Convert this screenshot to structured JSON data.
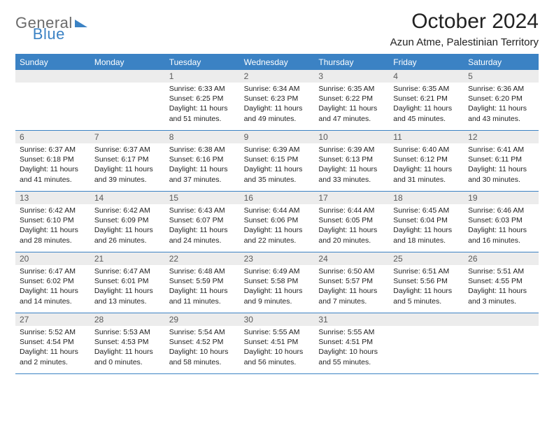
{
  "logo": {
    "part1": "General",
    "part2": "Blue"
  },
  "title": "October 2024",
  "subtitle": "Azun Atme, Palestinian Territory",
  "colors": {
    "brand": "#3b82c4",
    "grey_text": "#6b6b6b",
    "daynum_bg": "#ececec",
    "text": "#222222"
  },
  "day_names": [
    "Sunday",
    "Monday",
    "Tuesday",
    "Wednesday",
    "Thursday",
    "Friday",
    "Saturday"
  ],
  "weeks": [
    [
      null,
      null,
      {
        "n": "1",
        "sr": "6:33 AM",
        "ss": "6:25 PM",
        "dl": "11 hours and 51 minutes."
      },
      {
        "n": "2",
        "sr": "6:34 AM",
        "ss": "6:23 PM",
        "dl": "11 hours and 49 minutes."
      },
      {
        "n": "3",
        "sr": "6:35 AM",
        "ss": "6:22 PM",
        "dl": "11 hours and 47 minutes."
      },
      {
        "n": "4",
        "sr": "6:35 AM",
        "ss": "6:21 PM",
        "dl": "11 hours and 45 minutes."
      },
      {
        "n": "5",
        "sr": "6:36 AM",
        "ss": "6:20 PM",
        "dl": "11 hours and 43 minutes."
      }
    ],
    [
      {
        "n": "6",
        "sr": "6:37 AM",
        "ss": "6:18 PM",
        "dl": "11 hours and 41 minutes."
      },
      {
        "n": "7",
        "sr": "6:37 AM",
        "ss": "6:17 PM",
        "dl": "11 hours and 39 minutes."
      },
      {
        "n": "8",
        "sr": "6:38 AM",
        "ss": "6:16 PM",
        "dl": "11 hours and 37 minutes."
      },
      {
        "n": "9",
        "sr": "6:39 AM",
        "ss": "6:15 PM",
        "dl": "11 hours and 35 minutes."
      },
      {
        "n": "10",
        "sr": "6:39 AM",
        "ss": "6:13 PM",
        "dl": "11 hours and 33 minutes."
      },
      {
        "n": "11",
        "sr": "6:40 AM",
        "ss": "6:12 PM",
        "dl": "11 hours and 31 minutes."
      },
      {
        "n": "12",
        "sr": "6:41 AM",
        "ss": "6:11 PM",
        "dl": "11 hours and 30 minutes."
      }
    ],
    [
      {
        "n": "13",
        "sr": "6:42 AM",
        "ss": "6:10 PM",
        "dl": "11 hours and 28 minutes."
      },
      {
        "n": "14",
        "sr": "6:42 AM",
        "ss": "6:09 PM",
        "dl": "11 hours and 26 minutes."
      },
      {
        "n": "15",
        "sr": "6:43 AM",
        "ss": "6:07 PM",
        "dl": "11 hours and 24 minutes."
      },
      {
        "n": "16",
        "sr": "6:44 AM",
        "ss": "6:06 PM",
        "dl": "11 hours and 22 minutes."
      },
      {
        "n": "17",
        "sr": "6:44 AM",
        "ss": "6:05 PM",
        "dl": "11 hours and 20 minutes."
      },
      {
        "n": "18",
        "sr": "6:45 AM",
        "ss": "6:04 PM",
        "dl": "11 hours and 18 minutes."
      },
      {
        "n": "19",
        "sr": "6:46 AM",
        "ss": "6:03 PM",
        "dl": "11 hours and 16 minutes."
      }
    ],
    [
      {
        "n": "20",
        "sr": "6:47 AM",
        "ss": "6:02 PM",
        "dl": "11 hours and 14 minutes."
      },
      {
        "n": "21",
        "sr": "6:47 AM",
        "ss": "6:01 PM",
        "dl": "11 hours and 13 minutes."
      },
      {
        "n": "22",
        "sr": "6:48 AM",
        "ss": "5:59 PM",
        "dl": "11 hours and 11 minutes."
      },
      {
        "n": "23",
        "sr": "6:49 AM",
        "ss": "5:58 PM",
        "dl": "11 hours and 9 minutes."
      },
      {
        "n": "24",
        "sr": "6:50 AM",
        "ss": "5:57 PM",
        "dl": "11 hours and 7 minutes."
      },
      {
        "n": "25",
        "sr": "6:51 AM",
        "ss": "5:56 PM",
        "dl": "11 hours and 5 minutes."
      },
      {
        "n": "26",
        "sr": "5:51 AM",
        "ss": "4:55 PM",
        "dl": "11 hours and 3 minutes."
      }
    ],
    [
      {
        "n": "27",
        "sr": "5:52 AM",
        "ss": "4:54 PM",
        "dl": "11 hours and 2 minutes."
      },
      {
        "n": "28",
        "sr": "5:53 AM",
        "ss": "4:53 PM",
        "dl": "11 hours and 0 minutes."
      },
      {
        "n": "29",
        "sr": "5:54 AM",
        "ss": "4:52 PM",
        "dl": "10 hours and 58 minutes."
      },
      {
        "n": "30",
        "sr": "5:55 AM",
        "ss": "4:51 PM",
        "dl": "10 hours and 56 minutes."
      },
      {
        "n": "31",
        "sr": "5:55 AM",
        "ss": "4:51 PM",
        "dl": "10 hours and 55 minutes."
      },
      null,
      null
    ]
  ],
  "labels": {
    "sunrise": "Sunrise:",
    "sunset": "Sunset:",
    "daylight": "Daylight:"
  }
}
